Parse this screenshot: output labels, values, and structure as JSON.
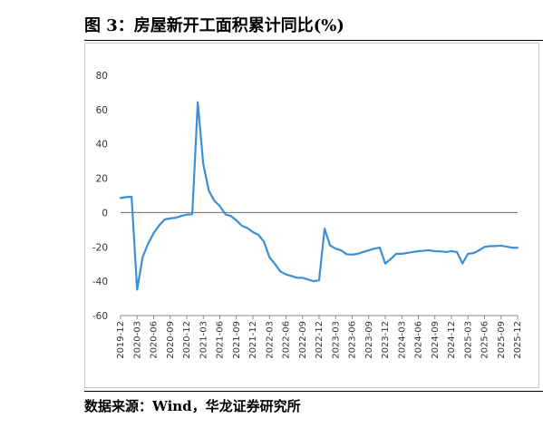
{
  "figure": {
    "title": "图 3：房屋新开工面积累计同比(%)",
    "source": "数据来源：Wind，华龙证券研究所"
  },
  "chart_data": {
    "type": "line",
    "title": "",
    "xlabel": "",
    "ylabel": "",
    "ylim": [
      -60,
      80
    ],
    "yticks": [
      -60,
      -40,
      -20,
      0,
      20,
      40,
      60,
      80
    ],
    "grid": false,
    "legend": "none",
    "line_color": "#3a8fd6",
    "x_tick_labels": [
      "2019-12",
      "2020-03",
      "2020-06",
      "2020-09",
      "2020-12",
      "2021-03",
      "2021-06",
      "2021-09",
      "2021-12",
      "2022-03",
      "2022-06",
      "2022-09",
      "2022-12",
      "2023-03",
      "2023-06",
      "2023-09",
      "2023-12",
      "2024-03",
      "2024-06",
      "2024-09",
      "2024-12",
      "2025-03",
      "2025-06",
      "2025-09",
      "2025-12"
    ],
    "series": [
      {
        "x": [
          "2019-12",
          "2020-01",
          "2020-02",
          "2020-03",
          "2020-04",
          "2020-05",
          "2020-06",
          "2020-07",
          "2020-08",
          "2020-09",
          "2020-10",
          "2020-11",
          "2020-12",
          "2021-01",
          "2021-02",
          "2021-03",
          "2021-04",
          "2021-05",
          "2021-06",
          "2021-07",
          "2021-08",
          "2021-09",
          "2021-10",
          "2021-11",
          "2021-12",
          "2022-01",
          "2022-02",
          "2022-03",
          "2022-04",
          "2022-05",
          "2022-06",
          "2022-07",
          "2022-08",
          "2022-09",
          "2022-10",
          "2022-11",
          "2022-12",
          "2023-01",
          "2023-02",
          "2023-03",
          "2023-04",
          "2023-05",
          "2023-06",
          "2023-07",
          "2023-08",
          "2023-09",
          "2023-10",
          "2023-11",
          "2023-12",
          "2024-01",
          "2024-02",
          "2024-03",
          "2024-04",
          "2024-05",
          "2024-06",
          "2024-07",
          "2024-08",
          "2024-09",
          "2024-10",
          "2024-11",
          "2024-12",
          "2025-01",
          "2025-02",
          "2025-03",
          "2025-04",
          "2025-05",
          "2025-06",
          "2025-07",
          "2025-08",
          "2025-09",
          "2025-10",
          "2025-11",
          "2025-12"
        ],
        "values": [
          8.5,
          9.0,
          9.2,
          -44.9,
          -26.0,
          -18.0,
          -12.0,
          -7.5,
          -4.0,
          -3.4,
          -3.0,
          -2.0,
          -1.2,
          -1.0,
          64.3,
          28.2,
          12.8,
          6.9,
          3.8,
          -1.0,
          -2.0,
          -4.5,
          -7.7,
          -9.0,
          -11.4,
          -13.0,
          -17.0,
          -26.0,
          -30.0,
          -34.4,
          -36.0,
          -37.0,
          -38.0,
          -38.0,
          -39.0,
          -40.0,
          -39.4,
          -9.4,
          -19.2,
          -21.0,
          -22.0,
          -24.3,
          -24.5,
          -24.0,
          -23.0,
          -22.0,
          -21.0,
          -20.4,
          -29.7,
          -27.0,
          -24.0,
          -24.0,
          -23.5,
          -23.0,
          -22.5,
          -22.2,
          -22.0,
          -22.5,
          -22.6,
          -23.0,
          -22.5,
          -23.0,
          -29.6,
          -24.0,
          -23.6,
          -22.0,
          -20.0,
          -19.5,
          -19.5,
          -19.3,
          -19.8,
          -20.5,
          -20.5
        ]
      }
    ]
  }
}
